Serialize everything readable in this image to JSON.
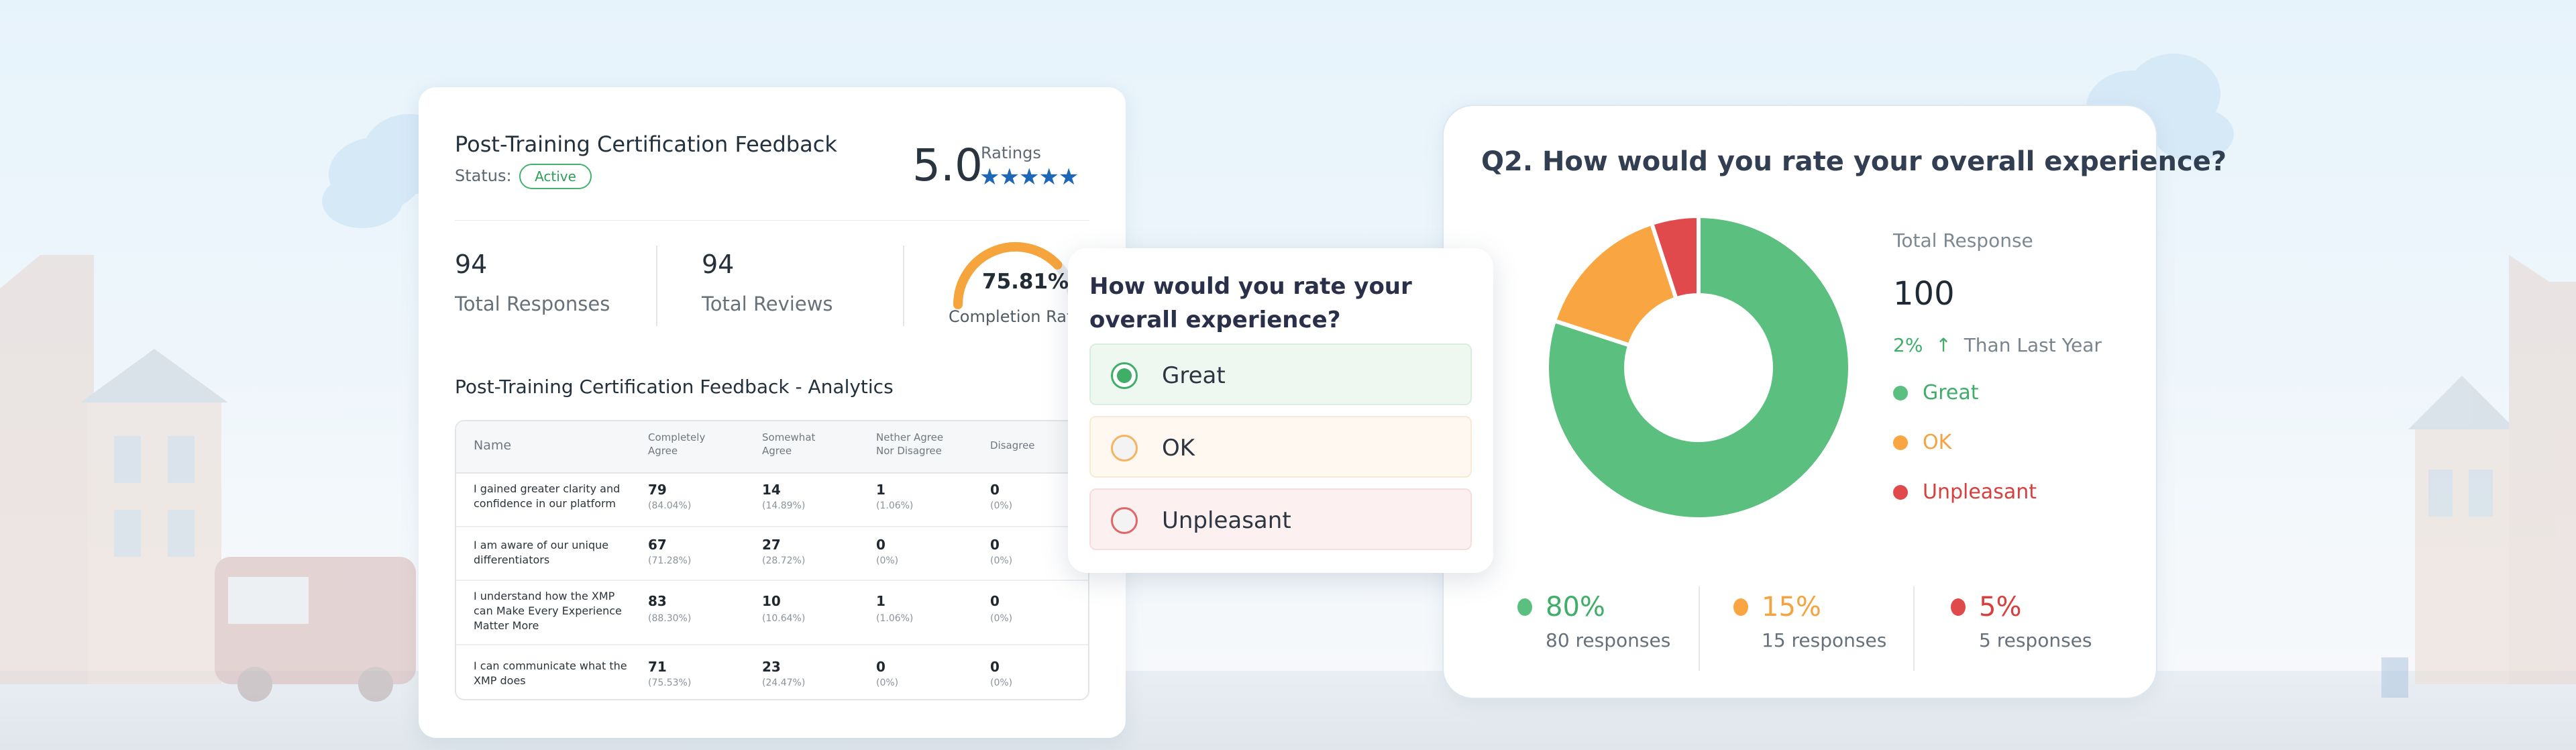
{
  "feedback_card": {
    "title": "Post-Training Certification Feedback",
    "status_label": "Status:",
    "status_badge": "Active",
    "rating_value": "5.0",
    "ratings_label": "Ratings",
    "stars": "★★★★★",
    "stats": [
      {
        "value": "94",
        "label": "Total Responses"
      },
      {
        "value": "94",
        "label": "Total Reviews"
      }
    ],
    "completion": {
      "value": "75.81%",
      "label": "Completion Rate",
      "fraction": 0.7581
    },
    "analytics_title": "Post-Training Certification Feedback - Analytics",
    "table": {
      "headers": [
        "Name",
        "Completely Agree",
        "Somewhat Agree",
        "Nether Agree Nor Disagree",
        "Disagree"
      ],
      "rows": [
        {
          "name": "I gained greater clarity and confidence in our platform",
          "c1": "79",
          "p1": "(84.04%)",
          "c2": "14",
          "p2": "(14.89%)",
          "c3": "1",
          "p3": "(1.06%)",
          "c4": "0",
          "p4": "(0%)"
        },
        {
          "name": "I am aware of our unique differentiators",
          "c1": "67",
          "p1": "(71.28%)",
          "c2": "27",
          "p2": "(28.72%)",
          "c3": "0",
          "p3": "(0%)",
          "c4": "0",
          "p4": "(0%)"
        },
        {
          "name": "I understand how the XMP can Make Every Experience Matter More",
          "c1": "83",
          "p1": "(88.30%)",
          "c2": "10",
          "p2": "(10.64%)",
          "c3": "1",
          "p3": "(1.06%)",
          "c4": "0",
          "p4": "(0%)"
        },
        {
          "name": "I can communicate what the XMP does",
          "c1": "71",
          "p1": "(75.53%)",
          "c2": "23",
          "p2": "(24.47%)",
          "c3": "0",
          "p3": "(0%)",
          "c4": "0",
          "p4": "(0%)"
        }
      ]
    }
  },
  "question_popup": {
    "question": "How would you rate your overall experience?",
    "options": [
      {
        "label": "Great",
        "selected": true
      },
      {
        "label": "OK",
        "selected": false
      },
      {
        "label": "Unpleasant",
        "selected": false
      }
    ]
  },
  "results_card": {
    "question": "Q2. How would you rate your overall experience?",
    "total_label": "Total Response",
    "total_value": "100",
    "trend_value": "2%",
    "trend_text": "Than Last Year",
    "legend": [
      "Great",
      "OK",
      "Unpleasant"
    ],
    "bottom_stats": [
      {
        "pct": "80%",
        "sub": "80 responses"
      },
      {
        "pct": "15%",
        "sub": "15 responses"
      },
      {
        "pct": "5%",
        "sub": "5 responses"
      }
    ],
    "colors": {
      "great": "#5bc07f",
      "ok": "#f9a541",
      "unpleasant": "#e04a4d"
    }
  },
  "chart_data": {
    "type": "pie",
    "categories": [
      "Great",
      "OK",
      "Unpleasant"
    ],
    "values": [
      80,
      15,
      5
    ],
    "title": "Q2. How would you rate your overall experience?"
  }
}
